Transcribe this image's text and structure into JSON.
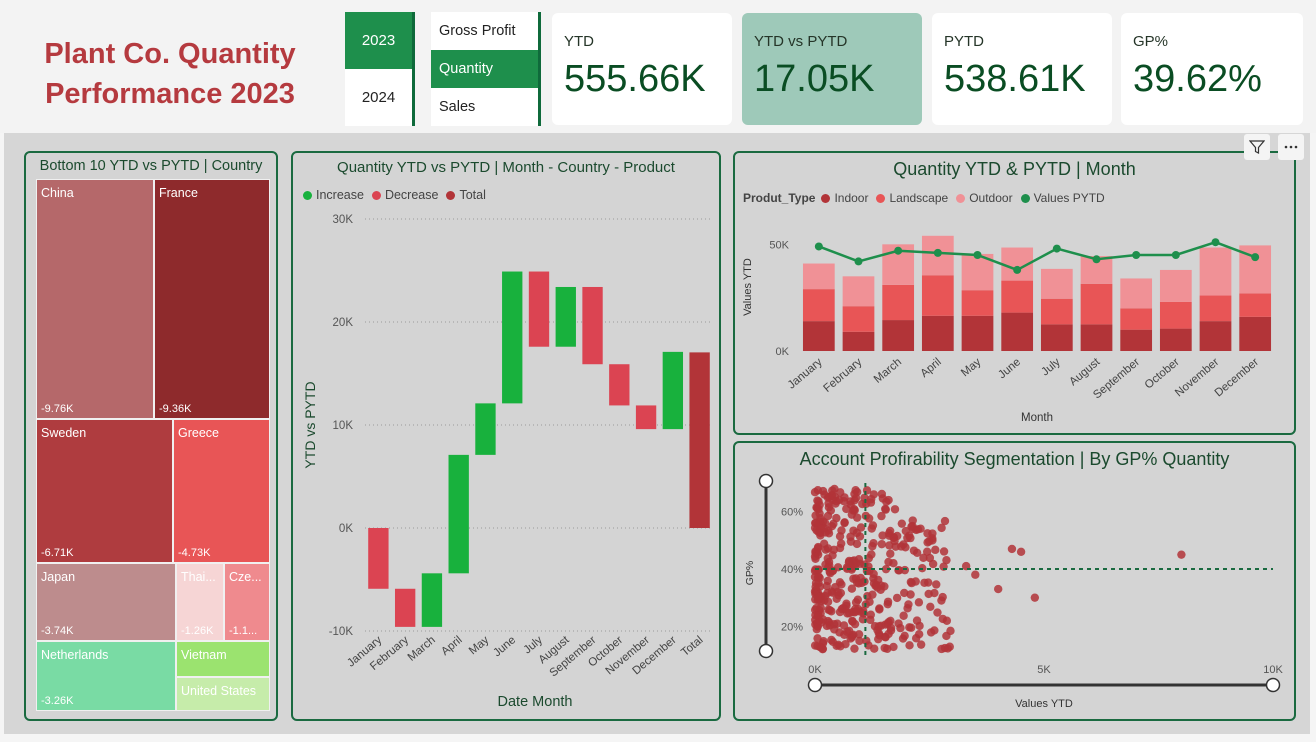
{
  "header": {
    "title_line1": "Plant Co. Quantity",
    "title_line2": "Performance 2023",
    "years": [
      "2023",
      "2024"
    ],
    "selected_year": "2023",
    "measures": [
      "Gross Profit",
      "Quantity",
      "Sales"
    ],
    "selected_measure": "Quantity"
  },
  "kpis": [
    {
      "label": "YTD",
      "value": "555.66K"
    },
    {
      "label": "YTD vs PYTD",
      "value": "17.05K"
    },
    {
      "label": "PYTD",
      "value": "538.61K"
    },
    {
      "label": "GP%",
      "value": "39.62%"
    }
  ],
  "colors": {
    "green": "#1e8f4c",
    "dark_green": "#0a4d23",
    "red": "#b53a3f",
    "waterfall_increase": "#18b13d",
    "waterfall_decrease": "#db4452",
    "waterfall_total": "#b23438"
  },
  "treemap": {
    "title": "Bottom 10 YTD vs PYTD | Country",
    "cells": [
      {
        "name": "China",
        "value": "-9.76K",
        "color": "#b5686a"
      },
      {
        "name": "France",
        "value": "-9.36K",
        "color": "#8e2a2c"
      },
      {
        "name": "Sweden",
        "value": "-6.71K",
        "color": "#af3c3f"
      },
      {
        "name": "Greece",
        "value": "-4.73K",
        "color": "#e85556"
      },
      {
        "name": "Japan",
        "value": "-3.74K",
        "color": "#bd8c8d"
      },
      {
        "name": "Thai...",
        "value": "-1.26K",
        "color": "#f6d5d5"
      },
      {
        "name": "Cze...",
        "value": "-1.1...",
        "color": "#ef8a8e"
      },
      {
        "name": "Netherlands",
        "value": "-3.26K",
        "color": "#79dba4"
      },
      {
        "name": "Vietnam",
        "value": "",
        "color": "#9be36f"
      },
      {
        "name": "United States",
        "value": "",
        "color": "#c6ecaa"
      }
    ]
  },
  "chart_data": [
    {
      "type": "bar",
      "subtype": "waterfall",
      "title": "Quantity YTD vs PYTD | Month - Country - Product",
      "legend": [
        "Increase",
        "Decrease",
        "Total"
      ],
      "xlabel": "Date Month",
      "ylabel": "YTD vs PYTD",
      "categories": [
        "January",
        "February",
        "March",
        "April",
        "May",
        "June",
        "July",
        "August",
        "September",
        "October",
        "November",
        "December",
        "Total"
      ],
      "values": [
        -5900,
        -3700,
        5200,
        11500,
        5000,
        12800,
        -7300,
        5800,
        -7500,
        -4000,
        -2300,
        7500,
        17050
      ],
      "ylim": [
        -10000,
        30000
      ],
      "yticks": [
        "30K",
        "20K",
        "10K",
        "0K",
        "-10K"
      ],
      "ytick_values": [
        30000,
        20000,
        10000,
        0,
        -10000
      ]
    },
    {
      "type": "bar",
      "subtype": "stacked-bar-with-line",
      "title": "Quantity YTD & PYTD | Month",
      "legend_title": "Produt_Type",
      "legend": [
        "Indoor",
        "Landscape",
        "Outdoor",
        "Values PYTD"
      ],
      "xlabel": "Month",
      "ylabel": "Values YTD",
      "categories": [
        "January",
        "February",
        "March",
        "April",
        "May",
        "June",
        "July",
        "August",
        "September",
        "October",
        "November",
        "December"
      ],
      "series": [
        {
          "name": "Indoor",
          "values": [
            14000,
            9000,
            14500,
            16500,
            16500,
            18000,
            12500,
            12500,
            10000,
            10500,
            14000,
            16000
          ]
        },
        {
          "name": "Landscape",
          "values": [
            15000,
            12000,
            16500,
            19000,
            12000,
            15000,
            12000,
            19000,
            10000,
            12500,
            12000,
            11000
          ]
        },
        {
          "name": "Outdoor",
          "values": [
            12000,
            14000,
            19000,
            18500,
            17000,
            15500,
            14000,
            13000,
            14000,
            15000,
            22500,
            22500
          ]
        },
        {
          "name": "Values PYTD",
          "values": [
            49000,
            42000,
            47000,
            46000,
            45000,
            38000,
            48000,
            43000,
            45000,
            45000,
            51000,
            44000
          ]
        }
      ],
      "ylim": [
        0,
        60000
      ],
      "yticks": [
        "50K",
        "0K"
      ],
      "ytick_values": [
        50000,
        0
      ]
    },
    {
      "type": "scatter",
      "title": "Account Profirability Segmentation | By GP% Quantity",
      "xlabel": "Values YTD",
      "ylabel": "GP%",
      "xlim": [
        0,
        10000
      ],
      "ylim": [
        10,
        70
      ],
      "xticks": [
        "0K",
        "5K",
        "10K"
      ],
      "xtick_values": [
        0,
        5000,
        10000
      ],
      "yticks": [
        "60%",
        "40%",
        "20%"
      ],
      "ytick_values": [
        60,
        40,
        20
      ],
      "reference_x": 1100,
      "reference_y": 40,
      "outliers": [
        {
          "x": 8000,
          "y": 45
        },
        {
          "x": 4500,
          "y": 46
        },
        {
          "x": 4300,
          "y": 47
        },
        {
          "x": 4800,
          "y": 30
        },
        {
          "x": 4000,
          "y": 33
        },
        {
          "x": 3300,
          "y": 41
        },
        {
          "x": 3500,
          "y": 38
        }
      ]
    }
  ]
}
